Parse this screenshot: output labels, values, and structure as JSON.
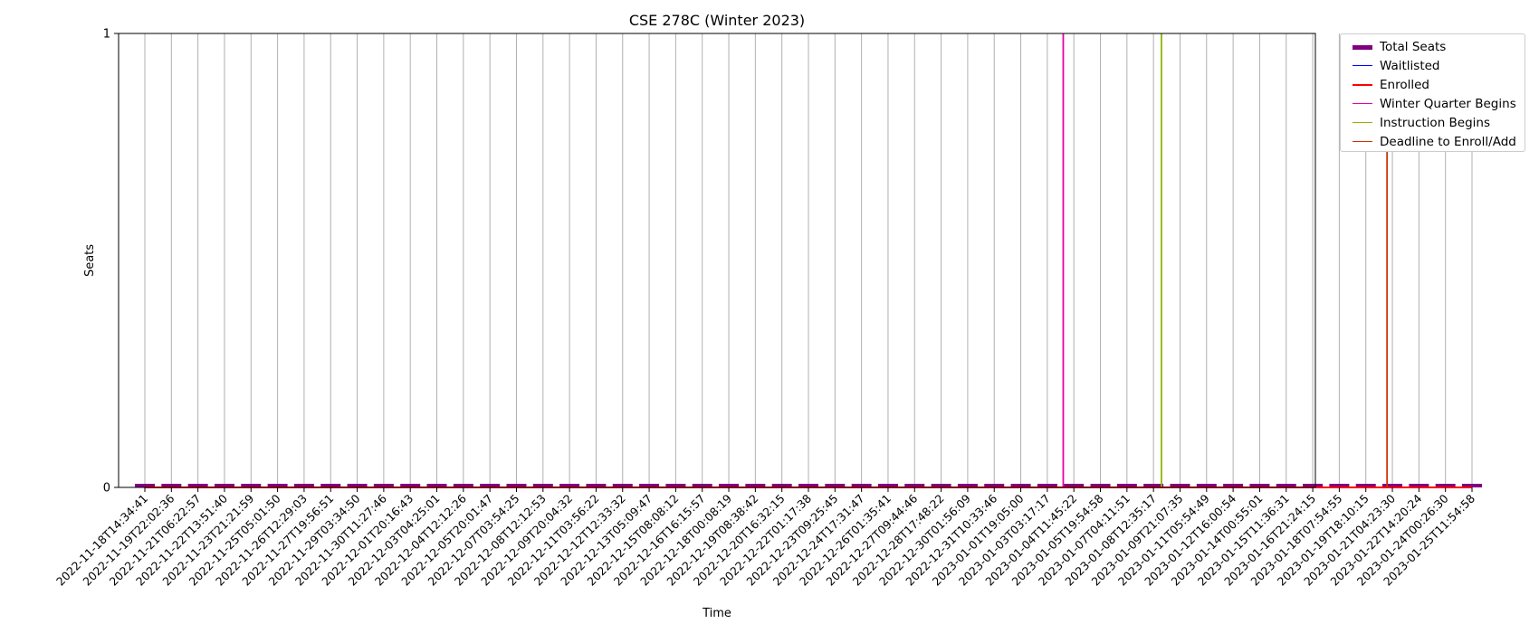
{
  "chart_data": {
    "type": "line",
    "title": "CSE 278C (Winter 2023)",
    "xlabel": "Time",
    "ylabel": "Seats",
    "ylim": [
      0,
      1
    ],
    "yticks": [
      "0",
      "1"
    ],
    "grid": true,
    "legend_position": "outside-top-right",
    "categories": [
      "2022-11-18T14:34:41",
      "2022-11-19T22:02:36",
      "2022-11-21T06:22:57",
      "2022-11-22T13:51:40",
      "2022-11-23T21:21:59",
      "2022-11-25T05:01:50",
      "2022-11-26T12:29:03",
      "2022-11-27T19:56:51",
      "2022-11-29T03:34:50",
      "2022-11-30T11:27:46",
      "2022-12-01T20:16:43",
      "2022-12-03T04:25:01",
      "2022-12-04T12:12:26",
      "2022-12-05T20:01:47",
      "2022-12-07T03:54:25",
      "2022-12-08T12:12:53",
      "2022-12-09T20:04:32",
      "2022-12-11T03:56:22",
      "2022-12-12T12:33:32",
      "2022-12-13T05:09:47",
      "2022-12-15T08:08:12",
      "2022-12-16T16:15:57",
      "2022-12-18T00:08:19",
      "2022-12-19T08:38:42",
      "2022-12-20T16:32:15",
      "2022-12-22T01:17:38",
      "2022-12-23T09:25:45",
      "2022-12-24T17:31:47",
      "2022-12-26T01:35:41",
      "2022-12-27T09:44:46",
      "2022-12-28T17:48:22",
      "2022-12-30T01:56:09",
      "2022-12-31T10:33:46",
      "2023-01-01T19:05:00",
      "2023-01-03T03:17:17",
      "2023-01-04T11:45:22",
      "2023-01-05T19:54:58",
      "2023-01-07T04:11:51",
      "2023-01-08T12:35:17",
      "2023-01-09T21:07:35",
      "2023-01-11T05:54:49",
      "2023-01-12T16:00:54",
      "2023-01-14T00:55:01",
      "2023-01-15T11:36:31",
      "2023-01-16T21:24:15",
      "2023-01-18T07:54:55",
      "2023-01-19T18:10:15",
      "2023-01-21T04:23:30",
      "2023-01-22T14:20:24",
      "2023-01-24T00:26:30",
      "2023-01-25T11:54:58"
    ],
    "series": [
      {
        "name": "Total Seats",
        "color": "#800080",
        "style": "bar",
        "values": [
          0,
          0,
          0,
          0,
          0,
          0,
          0,
          0,
          0,
          0,
          0,
          0,
          0,
          0,
          0,
          0,
          0,
          0,
          0,
          0,
          0,
          0,
          0,
          0,
          0,
          0,
          0,
          0,
          0,
          0,
          0,
          0,
          0,
          0,
          0,
          0,
          0,
          0,
          0,
          0,
          0,
          0,
          0,
          0,
          0,
          0,
          0,
          0,
          0,
          0,
          0
        ]
      },
      {
        "name": "Waitlisted",
        "color": "#0000ff",
        "style": "line",
        "values": [
          0,
          0,
          0,
          0,
          0,
          0,
          0,
          0,
          0,
          0,
          0,
          0,
          0,
          0,
          0,
          0,
          0,
          0,
          0,
          0,
          0,
          0,
          0,
          0,
          0,
          0,
          0,
          0,
          0,
          0,
          0,
          0,
          0,
          0,
          0,
          0,
          0,
          0,
          0,
          0,
          0,
          0,
          0,
          0,
          0,
          0,
          0,
          0,
          0,
          0,
          0
        ]
      },
      {
        "name": "Enrolled",
        "color": "#ff0000",
        "style": "line",
        "values": [
          0,
          0,
          0,
          0,
          0,
          0,
          0,
          0,
          0,
          0,
          0,
          0,
          0,
          0,
          0,
          0,
          0,
          0,
          0,
          0,
          0,
          0,
          0,
          0,
          0,
          0,
          0,
          0,
          0,
          0,
          0,
          0,
          0,
          0,
          0,
          0,
          0,
          0,
          0,
          0,
          0,
          0,
          0,
          0,
          0,
          0,
          0,
          0,
          0,
          0,
          0
        ]
      }
    ],
    "events": [
      {
        "name": "Winter Quarter Begins",
        "color": "#e600a8",
        "x_index": 34.6
      },
      {
        "name": "Instruction Begins",
        "color": "#8db600",
        "x_index": 38.3
      },
      {
        "name": "Deadline to Enroll/Add",
        "color": "#cc3300",
        "x_index": 46.8
      }
    ]
  }
}
